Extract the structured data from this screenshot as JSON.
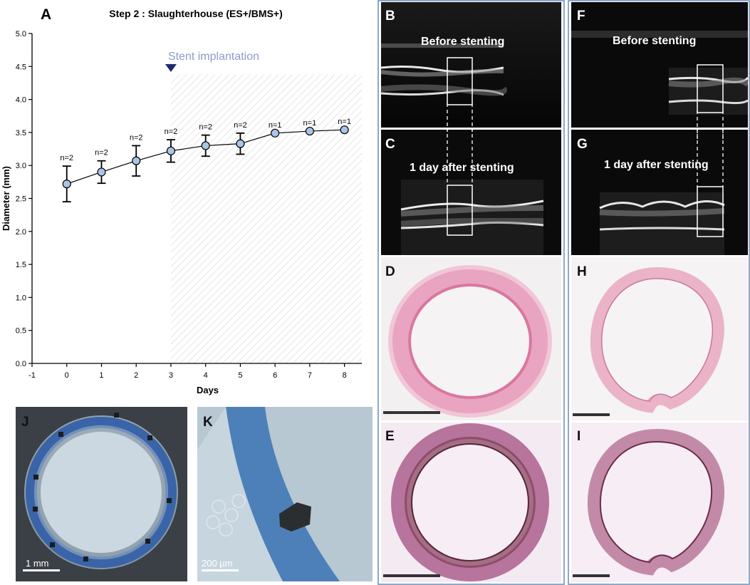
{
  "panels": {
    "A": "A",
    "B": "B",
    "C": "C",
    "D": "D",
    "E": "E",
    "F": "F",
    "G": "G",
    "H": "H",
    "I": "I",
    "J": "J",
    "K": "K"
  },
  "ultrasound": {
    "before_label": "Before stenting",
    "after_label": "1 day after stenting"
  },
  "scalebars": {
    "J": "1 mm",
    "K": "200 µm"
  },
  "colors": {
    "frame": "#8ea7cb",
    "marker_fill": "#a9c4e4",
    "hatch": "#d5d5d5",
    "annotation": "#8a9cc9",
    "triangle": "#1f2a6e"
  },
  "chart_data": {
    "type": "line",
    "title": "Step 2 : Slaughterhouse (ES+/BMS+)",
    "xlabel": "Days",
    "ylabel": "Diameter (mm)",
    "xlim": [
      -1,
      8.5
    ],
    "ylim": [
      0,
      5
    ],
    "x_ticks": [
      "-1",
      "0",
      "1",
      "2",
      "3",
      "4",
      "5",
      "6",
      "7",
      "8"
    ],
    "y_ticks": [
      "0.0",
      "0.5",
      "1.0",
      "1.5",
      "2.0",
      "2.5",
      "3.0",
      "3.5",
      "4.0",
      "4.5",
      "5.0"
    ],
    "annotation": "Stent implantation",
    "annotation_x": 3,
    "shaded_from": 3,
    "series": [
      {
        "x": [
          0,
          1,
          2,
          3,
          4,
          5,
          6,
          7,
          8
        ],
        "values": [
          2.72,
          2.9,
          3.07,
          3.22,
          3.3,
          3.33,
          3.49,
          3.52,
          3.54
        ],
        "error": [
          0.27,
          0.17,
          0.23,
          0.17,
          0.16,
          0.16,
          0,
          0,
          0
        ],
        "n_labels": [
          "n=2",
          "n=2",
          "n=2",
          "n=2",
          "n=2",
          "n=2",
          "n=1",
          "n=1",
          "n=1"
        ]
      }
    ]
  }
}
